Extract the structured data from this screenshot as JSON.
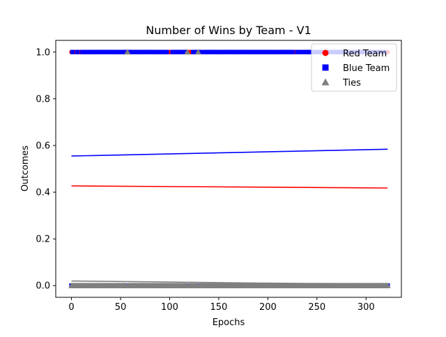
{
  "chart_data": {
    "type": "scatter",
    "title": "Number of Wins by Team - V1",
    "xlabel": "Epochs",
    "ylabel": "Outcomes",
    "xlim": [
      -16,
      336
    ],
    "ylim": [
      -0.05,
      1.05
    ],
    "xticks": [
      "0",
      "50",
      "100",
      "150",
      "200",
      "250",
      "300"
    ],
    "xtick_values": [
      0,
      50,
      100,
      150,
      200,
      250,
      300
    ],
    "yticks": [
      "0.0",
      "0.2",
      "0.4",
      "0.6",
      "0.8",
      "1.0"
    ],
    "ytick_values": [
      0,
      0.2,
      0.4,
      0.6,
      0.8,
      1.0
    ],
    "legend_position": "top-right",
    "n_epochs": 323,
    "series": [
      {
        "name": "Red Team",
        "marker": "circle",
        "color": "#ff0000",
        "values_description": "0 or 1 per epoch",
        "win_rate_start": 0.427,
        "win_rate_end": 0.418
      },
      {
        "name": "Blue Team",
        "marker": "square",
        "color": "#0000ff",
        "values_description": "0 or 1 per epoch",
        "win_rate_start": 0.555,
        "win_rate_end": 0.584
      },
      {
        "name": "Ties",
        "marker": "triangle",
        "color": "#808080",
        "tie_epochs": [
          57,
          118,
          129
        ],
        "tie_rate_start": 0.02,
        "tie_rate_end": 0.005
      }
    ],
    "trend_lines": [
      {
        "series": "Blue Team",
        "x": [
          0,
          322
        ],
        "y": [
          0.555,
          0.584
        ],
        "color": "#0000ff"
      },
      {
        "series": "Red Team",
        "x": [
          0,
          322
        ],
        "y": [
          0.427,
          0.418
        ],
        "color": "#ff0000"
      },
      {
        "series": "Ties",
        "x": [
          0,
          322
        ],
        "y": [
          0.02,
          0.005
        ],
        "color": "#808080"
      }
    ]
  }
}
